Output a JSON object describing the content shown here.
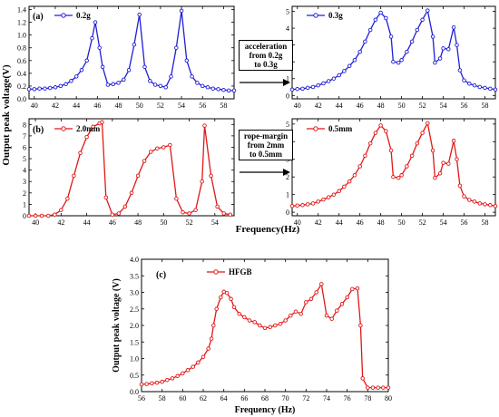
{
  "figure": {
    "shared_ylabel": "Output peak voltage(V)",
    "shared_xlabel": "Frequency(Hz)",
    "transition_a": {
      "lines": [
        "acceleration",
        "from 0.2g",
        "to 0.3g"
      ]
    },
    "transition_b": {
      "lines": [
        "rope-margin",
        "from 2mm",
        "to 0.5mm"
      ]
    },
    "colors": {
      "blue": "#1f1fd6",
      "red": "#e01818",
      "axis": "#000000"
    }
  },
  "chart_data": [
    {
      "id": "a-left",
      "type": "line",
      "panel_label": "(a)",
      "color": "blue",
      "xlim": [
        39.5,
        59
      ],
      "ylim": [
        0,
        1.45
      ],
      "xticks": [
        40,
        42,
        44,
        46,
        48,
        50,
        52,
        54,
        56,
        58
      ],
      "yticks": [
        0.0,
        0.2,
        0.4,
        0.6,
        0.8,
        1.0,
        1.2,
        1.4
      ],
      "ytick_labels": [
        "0.0",
        "0.2",
        "0.4",
        "0.6",
        "0.8",
        "1.0",
        "1.2",
        "1.4"
      ],
      "series": [
        {
          "name": "0.2g",
          "points": [
            [
              39.5,
              0.15
            ],
            [
              40,
              0.15
            ],
            [
              40.5,
              0.16
            ],
            [
              41,
              0.16
            ],
            [
              41.5,
              0.17
            ],
            [
              42,
              0.18
            ],
            [
              42.5,
              0.2
            ],
            [
              43,
              0.23
            ],
            [
              43.5,
              0.28
            ],
            [
              44,
              0.35
            ],
            [
              44.5,
              0.45
            ],
            [
              45,
              0.6
            ],
            [
              45.5,
              0.95
            ],
            [
              45.8,
              1.2
            ],
            [
              46.2,
              0.8
            ],
            [
              46.5,
              0.5
            ],
            [
              47,
              0.22
            ],
            [
              47.5,
              0.23
            ],
            [
              48,
              0.25
            ],
            [
              48.5,
              0.3
            ],
            [
              49,
              0.45
            ],
            [
              49.5,
              0.85
            ],
            [
              50,
              1.32
            ],
            [
              50.5,
              0.5
            ],
            [
              51,
              0.28
            ],
            [
              51.5,
              0.22
            ],
            [
              52,
              0.2
            ],
            [
              52.5,
              0.18
            ],
            [
              53,
              0.35
            ],
            [
              53.5,
              0.8
            ],
            [
              54,
              1.38
            ],
            [
              54.5,
              0.6
            ],
            [
              55,
              0.35
            ],
            [
              55.5,
              0.25
            ],
            [
              56,
              0.2
            ],
            [
              56.5,
              0.18
            ],
            [
              57,
              0.16
            ],
            [
              57.5,
              0.15
            ],
            [
              58,
              0.14
            ],
            [
              58.5,
              0.13
            ],
            [
              59,
              0.13
            ]
          ]
        }
      ]
    },
    {
      "id": "a-right",
      "type": "line",
      "panel_label": "",
      "color": "blue",
      "xlim": [
        39.5,
        59
      ],
      "ylim": [
        -0.2,
        5.3
      ],
      "xticks": [
        40,
        42,
        44,
        46,
        48,
        50,
        52,
        54,
        56,
        58
      ],
      "yticks": [
        0,
        1,
        2,
        3,
        4,
        5
      ],
      "ytick_labels": [
        "0",
        "1",
        "2",
        "3",
        "4",
        "5"
      ],
      "series": [
        {
          "name": "0.3g",
          "points": [
            [
              39.5,
              0.35
            ],
            [
              40,
              0.38
            ],
            [
              40.5,
              0.4
            ],
            [
              41,
              0.45
            ],
            [
              41.5,
              0.5
            ],
            [
              42,
              0.6
            ],
            [
              42.5,
              0.72
            ],
            [
              43,
              0.85
            ],
            [
              43.5,
              1.0
            ],
            [
              44,
              1.2
            ],
            [
              44.5,
              1.45
            ],
            [
              45,
              1.75
            ],
            [
              45.5,
              2.1
            ],
            [
              46,
              2.6
            ],
            [
              46.5,
              3.2
            ],
            [
              47,
              3.9
            ],
            [
              47.5,
              4.5
            ],
            [
              48,
              4.92
            ],
            [
              48.5,
              4.6
            ],
            [
              49,
              3.5
            ],
            [
              49.2,
              2.0
            ],
            [
              49.7,
              1.95
            ],
            [
              50,
              2.1
            ],
            [
              50.5,
              2.6
            ],
            [
              51,
              3.2
            ],
            [
              51.5,
              3.9
            ],
            [
              52,
              4.5
            ],
            [
              52.5,
              5.05
            ],
            [
              53,
              3.5
            ],
            [
              53.2,
              1.95
            ],
            [
              53.7,
              2.2
            ],
            [
              54,
              2.8
            ],
            [
              54.5,
              2.75
            ],
            [
              55,
              4.05
            ],
            [
              55.3,
              3.0
            ],
            [
              55.6,
              1.5
            ],
            [
              56,
              0.9
            ],
            [
              56.5,
              0.7
            ],
            [
              57,
              0.6
            ],
            [
              57.5,
              0.5
            ],
            [
              58,
              0.45
            ],
            [
              58.5,
              0.4
            ],
            [
              59,
              0.35
            ]
          ]
        }
      ]
    },
    {
      "id": "b-left",
      "type": "line",
      "panel_label": "(b)",
      "color": "red",
      "xlim": [
        39.5,
        55.5
      ],
      "ylim": [
        0,
        8.5
      ],
      "xticks": [
        40,
        42,
        44,
        46,
        48,
        50,
        52,
        54
      ],
      "yticks": [
        0,
        1,
        2,
        3,
        4,
        5,
        6,
        7,
        8
      ],
      "ytick_labels": [
        "0",
        "1",
        "2",
        "3",
        "4",
        "5",
        "6",
        "7",
        "8"
      ],
      "series": [
        {
          "name": "2.0mm",
          "points": [
            [
              39.5,
              0
            ],
            [
              40,
              0
            ],
            [
              40.5,
              0
            ],
            [
              41,
              0
            ],
            [
              41.5,
              0.1
            ],
            [
              42,
              0.5
            ],
            [
              42.5,
              1.5
            ],
            [
              43,
              3.5
            ],
            [
              43.5,
              5.5
            ],
            [
              44,
              6.9
            ],
            [
              44.5,
              7.8
            ],
            [
              45,
              8.1
            ],
            [
              45.2,
              8.2
            ],
            [
              45.5,
              1.6
            ],
            [
              46,
              0.1
            ],
            [
              46.5,
              0.2
            ],
            [
              47,
              0.8
            ],
            [
              47.5,
              2.0
            ],
            [
              48,
              3.5
            ],
            [
              48.5,
              4.8
            ],
            [
              49,
              5.6
            ],
            [
              49.5,
              5.9
            ],
            [
              50,
              6.0
            ],
            [
              50.5,
              6.2
            ],
            [
              51,
              1.5
            ],
            [
              51.5,
              0.3
            ],
            [
              52,
              0.2
            ],
            [
              52.5,
              0.5
            ],
            [
              53,
              3.0
            ],
            [
              53.2,
              7.9
            ],
            [
              53.7,
              3.5
            ],
            [
              54.2,
              0.8
            ],
            [
              54.7,
              0.2
            ],
            [
              55.2,
              0.1
            ]
          ]
        }
      ]
    },
    {
      "id": "b-right",
      "type": "line",
      "panel_label": "",
      "color": "red",
      "xlim": [
        39.5,
        59
      ],
      "ylim": [
        -0.2,
        5.3
      ],
      "xticks": [
        40,
        42,
        44,
        46,
        48,
        50,
        52,
        54,
        56,
        58
      ],
      "yticks": [
        0,
        1,
        2,
        3,
        4,
        5
      ],
      "ytick_labels": [
        "0",
        "1",
        "2",
        "3",
        "4",
        "5"
      ],
      "series": [
        {
          "name": "0.5mm",
          "points": [
            [
              39.5,
              0.35
            ],
            [
              40,
              0.38
            ],
            [
              40.5,
              0.4
            ],
            [
              41,
              0.45
            ],
            [
              41.5,
              0.5
            ],
            [
              42,
              0.6
            ],
            [
              42.5,
              0.72
            ],
            [
              43,
              0.85
            ],
            [
              43.5,
              1.0
            ],
            [
              44,
              1.2
            ],
            [
              44.5,
              1.45
            ],
            [
              45,
              1.75
            ],
            [
              45.5,
              2.1
            ],
            [
              46,
              2.6
            ],
            [
              46.5,
              3.2
            ],
            [
              47,
              3.9
            ],
            [
              47.5,
              4.5
            ],
            [
              48,
              4.92
            ],
            [
              48.5,
              4.6
            ],
            [
              49,
              3.5
            ],
            [
              49.2,
              2.0
            ],
            [
              49.7,
              1.95
            ],
            [
              50,
              2.1
            ],
            [
              50.5,
              2.6
            ],
            [
              51,
              3.2
            ],
            [
              51.5,
              3.9
            ],
            [
              52,
              4.5
            ],
            [
              52.5,
              5.05
            ],
            [
              53,
              3.5
            ],
            [
              53.2,
              1.95
            ],
            [
              53.7,
              2.2
            ],
            [
              54,
              2.8
            ],
            [
              54.5,
              2.75
            ],
            [
              55,
              4.05
            ],
            [
              55.3,
              3.0
            ],
            [
              55.6,
              1.5
            ],
            [
              56,
              0.9
            ],
            [
              56.5,
              0.7
            ],
            [
              57,
              0.6
            ],
            [
              57.5,
              0.5
            ],
            [
              58,
              0.45
            ],
            [
              58.5,
              0.4
            ],
            [
              59,
              0.35
            ]
          ]
        }
      ]
    },
    {
      "id": "c",
      "type": "line",
      "panel_label": "(c)",
      "color": "red",
      "xlim": [
        56,
        80
      ],
      "ylim": [
        0,
        4.0
      ],
      "xticks": [
        56,
        58,
        60,
        62,
        64,
        66,
        68,
        70,
        72,
        74,
        76,
        78,
        80
      ],
      "yticks": [
        0,
        0.5,
        1.0,
        1.5,
        2.0,
        2.5,
        3.0,
        3.5,
        4.0
      ],
      "ytick_labels": [
        "0.0",
        "0.5",
        "1.0",
        "1.5",
        "2.0",
        "2.5",
        "3.0",
        "3.5",
        "4.0"
      ],
      "xlabel": "Frequency (Hz)",
      "ylabel": "Output peak voltage (V)",
      "series": [
        {
          "name": "HFGB",
          "points": [
            [
              56,
              0.22
            ],
            [
              56.5,
              0.23
            ],
            [
              57,
              0.25
            ],
            [
              57.5,
              0.27
            ],
            [
              58,
              0.3
            ],
            [
              58.5,
              0.35
            ],
            [
              59,
              0.4
            ],
            [
              59.5,
              0.47
            ],
            [
              60,
              0.55
            ],
            [
              60.5,
              0.65
            ],
            [
              61,
              0.75
            ],
            [
              61.5,
              0.88
            ],
            [
              62,
              1.05
            ],
            [
              62.5,
              1.3
            ],
            [
              62.8,
              1.6
            ],
            [
              63,
              2.0
            ],
            [
              63.3,
              2.5
            ],
            [
              63.7,
              2.85
            ],
            [
              64,
              3.02
            ],
            [
              64.3,
              2.98
            ],
            [
              64.7,
              2.8
            ],
            [
              65,
              2.55
            ],
            [
              65.5,
              2.35
            ],
            [
              66,
              2.25
            ],
            [
              66.5,
              2.15
            ],
            [
              67,
              2.1
            ],
            [
              67.5,
              2.0
            ],
            [
              68,
              1.92
            ],
            [
              68.5,
              1.95
            ],
            [
              69,
              2.0
            ],
            [
              69.5,
              2.05
            ],
            [
              70,
              2.15
            ],
            [
              70.5,
              2.3
            ],
            [
              71,
              2.42
            ],
            [
              71.5,
              2.35
            ],
            [
              72,
              2.7
            ],
            [
              72.5,
              2.8
            ],
            [
              73,
              3.0
            ],
            [
              73.5,
              3.25
            ],
            [
              74,
              2.3
            ],
            [
              74.5,
              2.2
            ],
            [
              75,
              2.45
            ],
            [
              75.5,
              2.65
            ],
            [
              76,
              2.85
            ],
            [
              76.5,
              3.1
            ],
            [
              77,
              3.12
            ],
            [
              77.3,
              2.0
            ],
            [
              77.5,
              0.4
            ],
            [
              78,
              0.12
            ],
            [
              78.5,
              0.12
            ],
            [
              79,
              0.12
            ],
            [
              79.5,
              0.12
            ],
            [
              80,
              0.12
            ]
          ]
        }
      ]
    }
  ]
}
